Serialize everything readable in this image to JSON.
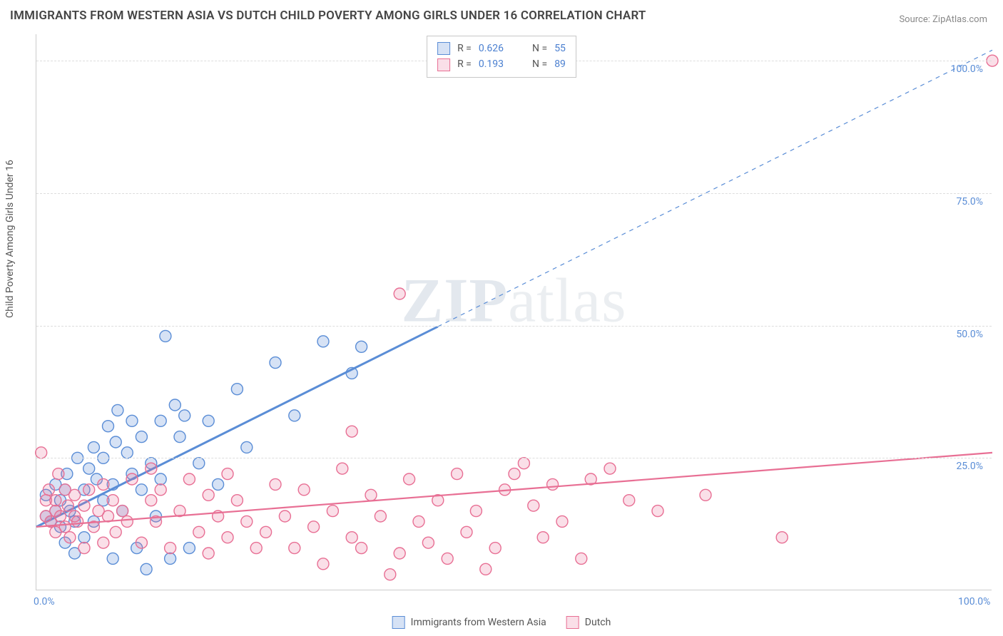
{
  "title": "IMMIGRANTS FROM WESTERN ASIA VS DUTCH CHILD POVERTY AMONG GIRLS UNDER 16 CORRELATION CHART",
  "source_label": "Source:",
  "source_name": "ZipAtlas.com",
  "watermark": {
    "bold": "ZIP",
    "rest": "atlas"
  },
  "y_axis_label": "Child Poverty Among Girls Under 16",
  "chart": {
    "type": "scatter",
    "xlim": [
      0,
      100
    ],
    "ylim": [
      0,
      105
    ],
    "x_ticks": [
      {
        "v": 0,
        "label": "0.0%"
      },
      {
        "v": 100,
        "label": "100.0%"
      }
    ],
    "y_ticks": [
      {
        "v": 25,
        "label": "25.0%"
      },
      {
        "v": 50,
        "label": "50.0%"
      },
      {
        "v": 75,
        "label": "75.0%"
      },
      {
        "v": 100,
        "label": "100.0%"
      }
    ],
    "grid_color": "#dddddd",
    "background_color": "#ffffff",
    "axis_color": "#cccccc",
    "tick_label_color": "#5a8dd6",
    "marker_radius": 8,
    "marker_stroke_width": 1.4,
    "marker_fill_opacity": 0.25,
    "series": [
      {
        "key": "blue",
        "label": "Immigrants from Western Asia",
        "r_value": "0.626",
        "n_value": "55",
        "color": "#5a8dd6",
        "fill": "rgba(90,141,214,0.25)",
        "trend": {
          "solid_to_x": 42,
          "x1": 0,
          "y1": 12,
          "x2": 100,
          "y2": 102,
          "width_solid": 3,
          "width_dash": 1.2,
          "dash": "6,6"
        },
        "points": [
          [
            1,
            14
          ],
          [
            1,
            18
          ],
          [
            1.5,
            13
          ],
          [
            2,
            15
          ],
          [
            2,
            20
          ],
          [
            2.5,
            12
          ],
          [
            2.5,
            17
          ],
          [
            3,
            9
          ],
          [
            3,
            19
          ],
          [
            3.2,
            22
          ],
          [
            3.5,
            15
          ],
          [
            4,
            7
          ],
          [
            4,
            13
          ],
          [
            4.3,
            25
          ],
          [
            5,
            10
          ],
          [
            5,
            19
          ],
          [
            5.5,
            23
          ],
          [
            6,
            13
          ],
          [
            6,
            27
          ],
          [
            6.3,
            21
          ],
          [
            7,
            17
          ],
          [
            7,
            25
          ],
          [
            7.5,
            31
          ],
          [
            8,
            6
          ],
          [
            8,
            20
          ],
          [
            8.3,
            28
          ],
          [
            8.5,
            34
          ],
          [
            9,
            15
          ],
          [
            9.5,
            26
          ],
          [
            10,
            22
          ],
          [
            10,
            32
          ],
          [
            10.5,
            8
          ],
          [
            11,
            19
          ],
          [
            11,
            29
          ],
          [
            11.5,
            4
          ],
          [
            12,
            24
          ],
          [
            12.5,
            14
          ],
          [
            13,
            32
          ],
          [
            13,
            21
          ],
          [
            13.5,
            48
          ],
          [
            14,
            6
          ],
          [
            14.5,
            35
          ],
          [
            15,
            29
          ],
          [
            15.5,
            33
          ],
          [
            16,
            8
          ],
          [
            17,
            24
          ],
          [
            18,
            32
          ],
          [
            19,
            20
          ],
          [
            21,
            38
          ],
          [
            22,
            27
          ],
          [
            25,
            43
          ],
          [
            27,
            33
          ],
          [
            30,
            47
          ],
          [
            33,
            41
          ],
          [
            34,
            46
          ]
        ]
      },
      {
        "key": "pink",
        "label": "Dutch",
        "r_value": "0.193",
        "n_value": "89",
        "color": "#e86f94",
        "fill": "rgba(232,111,148,0.22)",
        "trend": {
          "solid_to_x": 100,
          "x1": 0,
          "y1": 12,
          "x2": 100,
          "y2": 26,
          "width_solid": 2.2,
          "width_dash": 0,
          "dash": ""
        },
        "points": [
          [
            0.5,
            26
          ],
          [
            1,
            14
          ],
          [
            1,
            17
          ],
          [
            1.3,
            19
          ],
          [
            1.5,
            13
          ],
          [
            2,
            11
          ],
          [
            2,
            15
          ],
          [
            2,
            17
          ],
          [
            2.3,
            22
          ],
          [
            2.5,
            14
          ],
          [
            3,
            12
          ],
          [
            3,
            19
          ],
          [
            3.3,
            16
          ],
          [
            3.5,
            10
          ],
          [
            4,
            14
          ],
          [
            4,
            18
          ],
          [
            4.3,
            13
          ],
          [
            5,
            8
          ],
          [
            5,
            16
          ],
          [
            5.5,
            19
          ],
          [
            6,
            12
          ],
          [
            6.5,
            15
          ],
          [
            7,
            9
          ],
          [
            7,
            20
          ],
          [
            7.5,
            14
          ],
          [
            8,
            17
          ],
          [
            8.3,
            11
          ],
          [
            9,
            15
          ],
          [
            9.5,
            13
          ],
          [
            10,
            21
          ],
          [
            11,
            9
          ],
          [
            12,
            17
          ],
          [
            12,
            23
          ],
          [
            12.5,
            13
          ],
          [
            13,
            19
          ],
          [
            14,
            8
          ],
          [
            15,
            15
          ],
          [
            16,
            21
          ],
          [
            17,
            11
          ],
          [
            18,
            18
          ],
          [
            18,
            7
          ],
          [
            19,
            14
          ],
          [
            20,
            22
          ],
          [
            20,
            10
          ],
          [
            21,
            17
          ],
          [
            22,
            13
          ],
          [
            23,
            8
          ],
          [
            24,
            11
          ],
          [
            25,
            20
          ],
          [
            26,
            14
          ],
          [
            27,
            8
          ],
          [
            28,
            19
          ],
          [
            29,
            12
          ],
          [
            30,
            5
          ],
          [
            31,
            15
          ],
          [
            32,
            23
          ],
          [
            33,
            10
          ],
          [
            33,
            30
          ],
          [
            34,
            8
          ],
          [
            35,
            18
          ],
          [
            36,
            14
          ],
          [
            37,
            3
          ],
          [
            38,
            7
          ],
          [
            38,
            56
          ],
          [
            39,
            21
          ],
          [
            40,
            13
          ],
          [
            41,
            9
          ],
          [
            42,
            17
          ],
          [
            43,
            6
          ],
          [
            44,
            22
          ],
          [
            45,
            11
          ],
          [
            46,
            15
          ],
          [
            47,
            4
          ],
          [
            48,
            8
          ],
          [
            49,
            19
          ],
          [
            50,
            22
          ],
          [
            51,
            24
          ],
          [
            52,
            16
          ],
          [
            53,
            10
          ],
          [
            54,
            20
          ],
          [
            55,
            13
          ],
          [
            57,
            6
          ],
          [
            58,
            21
          ],
          [
            60,
            23
          ],
          [
            62,
            17
          ],
          [
            65,
            15
          ],
          [
            70,
            18
          ],
          [
            78,
            10
          ],
          [
            100,
            100
          ]
        ]
      }
    ]
  },
  "bottom_legend": {
    "items": [
      {
        "label": "Immigrants from Western Asia",
        "color": "#5a8dd6",
        "fill": "rgba(90,141,214,0.25)"
      },
      {
        "label": "Dutch",
        "color": "#e86f94",
        "fill": "rgba(232,111,148,0.22)"
      }
    ]
  }
}
